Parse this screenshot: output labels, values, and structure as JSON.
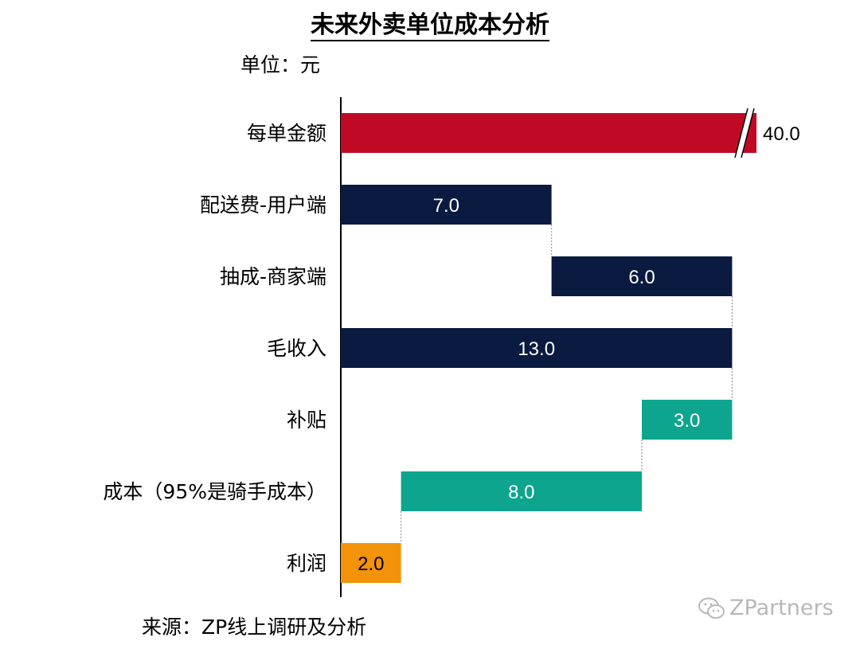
{
  "title": "未来外卖单位成本分析",
  "unit_label": "单位：元",
  "source": "来源：ZP线上调研及分析",
  "watermark": "ZPartners",
  "watermark_icon": "wechat-icon",
  "colors": {
    "red": "#C00A25",
    "navy": "#0A1A40",
    "teal": "#0DA58E",
    "orange": "#F2930A"
  },
  "chart_data": {
    "type": "waterfall",
    "title": "未来外卖单位成本分析",
    "unit": "元",
    "axis_break_on_first_bar": true,
    "bars": [
      {
        "label": "每单金额",
        "value": 40.0,
        "text": "40.0",
        "start": 0,
        "color": "red",
        "broken": true
      },
      {
        "label": "配送费-用户端",
        "value": 7.0,
        "text": "7.0",
        "start": 0,
        "color": "navy"
      },
      {
        "label": "抽成-商家端",
        "value": 6.0,
        "text": "6.0",
        "start": 7.0,
        "color": "navy"
      },
      {
        "label": "毛收入",
        "value": 13.0,
        "text": "13.0",
        "start": 0,
        "color": "navy"
      },
      {
        "label": "补贴",
        "value": 3.0,
        "text": "3.0",
        "start": 10.0,
        "color": "teal"
      },
      {
        "label": "成本（95%是骑手成本）",
        "value": 8.0,
        "text": "8.0",
        "start": 2.0,
        "color": "teal"
      },
      {
        "label": "利润",
        "value": 2.0,
        "text": "2.0",
        "start": 0,
        "color": "orange"
      }
    ]
  }
}
